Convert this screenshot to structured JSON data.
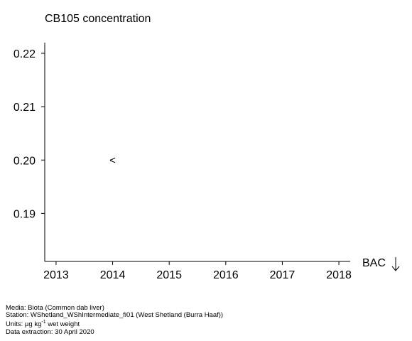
{
  "chart_data": {
    "type": "scatter",
    "title": "CB105 concentration",
    "xlabel": "",
    "ylabel": "",
    "x_ticks": [
      "2013",
      "2014",
      "2015",
      "2016",
      "2017",
      "2018"
    ],
    "y_ticks": [
      "0.22",
      "0.21",
      "0.20",
      "0.19"
    ],
    "xlim": [
      2012.8,
      2018.2
    ],
    "ylim": [
      0.181,
      0.222
    ],
    "grid": false,
    "points": [
      {
        "x": 2014,
        "y": 0.2,
        "symbol": "<"
      }
    ],
    "annotation": {
      "label": "BAC",
      "arrow": "down-arrow-icon"
    }
  },
  "footer": {
    "media": "Media: Biota (Common dab liver)",
    "station": "Station: WShetland_WShIntermediate_fi01 (West Shetland (Burra Haaf))",
    "units_prefix": "Units:  µg kg",
    "units_sup": "-1",
    "units_suffix": " wet weight",
    "extraction": "Data extraction: 30 April 2020"
  }
}
